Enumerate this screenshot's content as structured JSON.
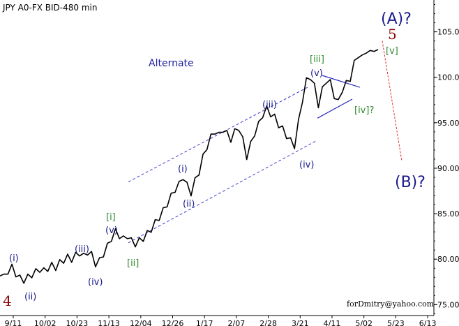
{
  "chart_data": {
    "type": "line",
    "title": "JPY A0-FX BID-480 min",
    "x_ticks": [
      "9/11",
      "10/02",
      "10/23",
      "11/13",
      "12/04",
      "12/26",
      "1/17",
      "2/07",
      "2/28",
      "3/21",
      "4/11",
      "5/02",
      "5/23",
      "6/13"
    ],
    "y_ticks": [
      75.0,
      80.0,
      85.0,
      90.0,
      95.0,
      100.0,
      105.0
    ],
    "ylim": [
      73.8,
      108.5
    ],
    "grid": false,
    "series": [
      {
        "values": [
          78.5,
          78.0,
          78.7,
          79.1,
          78.4,
          77.9,
          77.7,
          78.0,
          78.3,
          78.6,
          78.9,
          78.7,
          79.0,
          79.3,
          79.1,
          79.6,
          79.9,
          80.2,
          80.0,
          80.4,
          80.7,
          80.3,
          80.8,
          80.5,
          79.5,
          79.8,
          80.6,
          81.4,
          82.3,
          83.0,
          82.6,
          82.2,
          82.6,
          82.0,
          81.7,
          82.0,
          82.3,
          82.8,
          83.3,
          84.0,
          84.6,
          85.3,
          86.1,
          86.9,
          87.7,
          88.2,
          89.1,
          88.1,
          87.3,
          88.6,
          89.6,
          91.2,
          92.4,
          93.4,
          94.1,
          93.6,
          94.3,
          93.8,
          93.2,
          94.0,
          94.5,
          93.1,
          91.3,
          92.6,
          93.9,
          94.8,
          95.9,
          96.5,
          96.0,
          95.6,
          94.8,
          94.3,
          93.6,
          93.0,
          92.5,
          95.0,
          97.6,
          99.6,
          100.1,
          99.0,
          97.0,
          98.6,
          99.7,
          99.4,
          98.0,
          97.2,
          98.7,
          99.3,
          99.9,
          101.5,
          102.5,
          102.1,
          103.0,
          102.6,
          103.2,
          102.7
        ]
      }
    ],
    "annotations": {
      "label_4": "4",
      "label_5": "5",
      "label_A": "(A)?",
      "label_B": "(B)?",
      "label_i1": "(i)",
      "label_ii1": "(ii)",
      "label_iii1": "(iii)",
      "label_iv1": "(iv)",
      "label_v1": "(v)",
      "label_i_g": "[i]",
      "label_ii_g": "[ii]",
      "label_i2": "(i)",
      "label_ii2": "(ii)",
      "label_iii2": "(iii)",
      "label_iv2": "(iv)",
      "label_v2": "(v)",
      "label_iii_g": "[iii]",
      "label_iv_g": "[iv]?",
      "label_v_g": "[v]",
      "alternate": "Alternate",
      "credit": "forDmitry@yahoo.com"
    }
  }
}
